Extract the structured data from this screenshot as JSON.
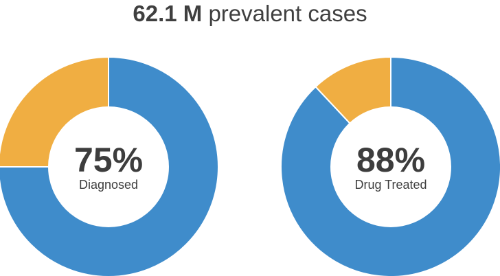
{
  "title": {
    "value": "62.1 M",
    "text": "prevalent cases"
  },
  "colors": {
    "primary": "#3f8ccb",
    "secondary": "#f0ae42",
    "inner": "#ffffff",
    "text": "#3d3d3d"
  },
  "chart_data": [
    {
      "type": "pie",
      "variant": "donut",
      "center_value": "75%",
      "center_label": "Diagnosed",
      "values": [
        75,
        25
      ]
    },
    {
      "type": "pie",
      "variant": "donut",
      "center_value": "88%",
      "center_label": "Drug Treated",
      "values": [
        88,
        12
      ]
    }
  ]
}
